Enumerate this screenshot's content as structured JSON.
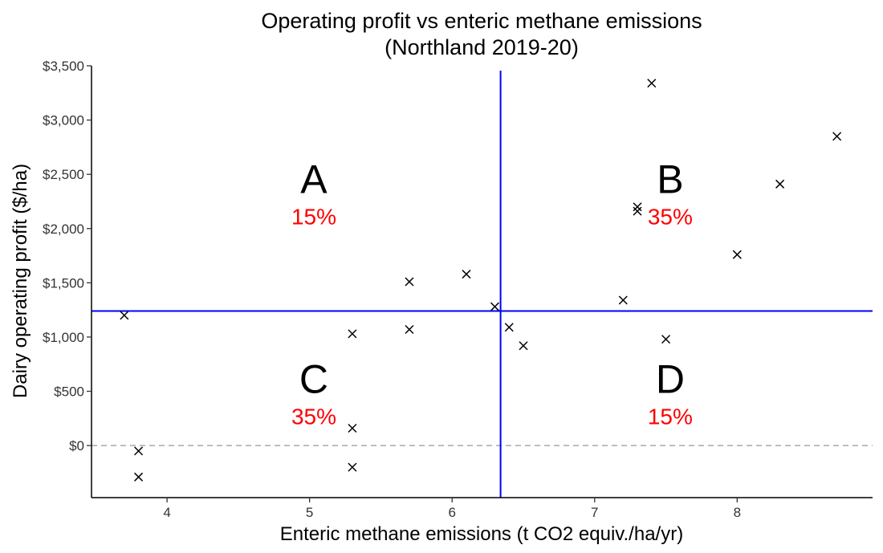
{
  "chart_data": {
    "type": "scatter",
    "title": "Operating profit vs enteric methane emissions",
    "subtitle": "(Northland 2019-20)",
    "xlabel": "Enteric methane emissions (t CO2 equiv./ha/yr)",
    "ylabel": "Dairy operating profit ($/ha)",
    "xlim": [
      3.47,
      8.95
    ],
    "ylim": [
      -480,
      3500
    ],
    "x_ticks": [
      4,
      5,
      6,
      7,
      8
    ],
    "x_tick_labels": [
      "4",
      "5",
      "6",
      "7",
      "8"
    ],
    "y_ticks": [
      0,
      500,
      1000,
      1500,
      2000,
      2500,
      3000,
      3500
    ],
    "y_tick_labels": [
      "$0",
      "$500",
      "$1,000",
      "$1,500",
      "$2,000",
      "$2,500",
      "$3,000",
      "$3,500"
    ],
    "grid": false,
    "marker": "x",
    "points": [
      {
        "x": 3.7,
        "y": 1200
      },
      {
        "x": 3.8,
        "y": -50
      },
      {
        "x": 3.8,
        "y": -290
      },
      {
        "x": 5.3,
        "y": 1030
      },
      {
        "x": 5.3,
        "y": 160
      },
      {
        "x": 5.3,
        "y": -200
      },
      {
        "x": 5.7,
        "y": 1510
      },
      {
        "x": 5.7,
        "y": 1070
      },
      {
        "x": 6.1,
        "y": 1580
      },
      {
        "x": 6.3,
        "y": 1280
      },
      {
        "x": 6.4,
        "y": 1090
      },
      {
        "x": 6.5,
        "y": 920
      },
      {
        "x": 7.2,
        "y": 1340
      },
      {
        "x": 7.3,
        "y": 2200
      },
      {
        "x": 7.3,
        "y": 2160
      },
      {
        "x": 7.4,
        "y": 3340
      },
      {
        "x": 7.5,
        "y": 980
      },
      {
        "x": 8.0,
        "y": 1760
      },
      {
        "x": 8.3,
        "y": 2410
      },
      {
        "x": 8.7,
        "y": 2850
      }
    ],
    "reference_lines": {
      "vertical_x": 6.34,
      "horizontal_y": 1240,
      "zero_line_y": 0,
      "color": "#0000ff",
      "zero_line_color": "#aaaaaa"
    },
    "quadrants": [
      {
        "letter": "A",
        "percent": "15%",
        "x": 5.03,
        "y": 2460
      },
      {
        "letter": "B",
        "percent": "35%",
        "x": 7.53,
        "y": 2460
      },
      {
        "letter": "C",
        "percent": "35%",
        "x": 5.03,
        "y": 620
      },
      {
        "letter": "D",
        "percent": "15%",
        "x": 7.53,
        "y": 620
      }
    ],
    "colors": {
      "points": "#000000",
      "quadrant_letter": "#000000",
      "quadrant_percent": "#ff0000"
    }
  }
}
